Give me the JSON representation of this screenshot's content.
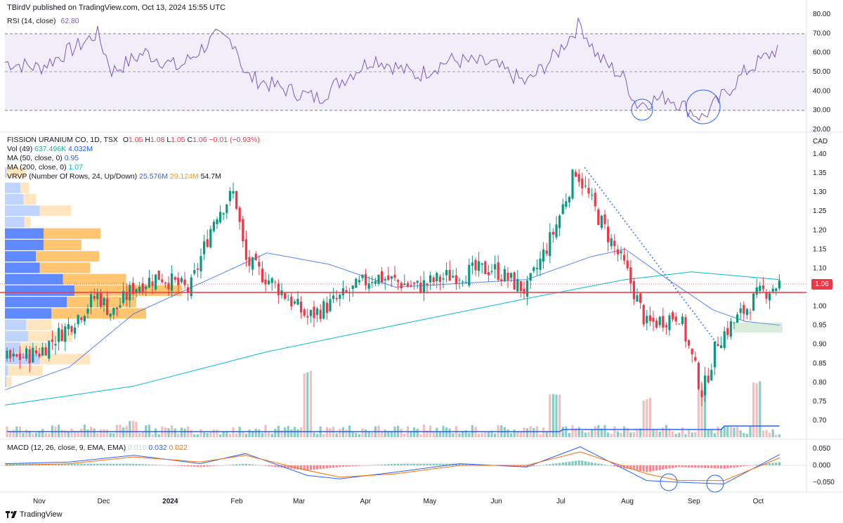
{
  "header": {
    "publisher": "TBirdV published on TradingView.com, Oct 13, 2024 15:55 UTC"
  },
  "rsi_panel": {
    "label": "RSI (14, close)",
    "value": "62.80",
    "levels": [
      "80.00",
      "70.00",
      "60.00",
      "50.00",
      "40.00",
      "30.00",
      "20.00"
    ]
  },
  "main_panel": {
    "symbol": "FISSION URANIUM CO, 1D, TSX",
    "o_label": "O",
    "o": "1.05",
    "h_label": "H",
    "h": "1.08",
    "l_label": "L",
    "l": "1.05",
    "c_label": "C",
    "c": "1.06",
    "change": "−0.01 (−0.93%)",
    "vol_label": "Vol (49)",
    "vol_value": "637.496K",
    "vol_ma": "4.032M",
    "ma50_label": "MA (50, close, 0)",
    "ma50_value": "0.95",
    "ma200_label": "MA (200, close, 0)",
    "ma200_value": "1.07",
    "vrvp_label": "VRVP (Number Of Rows, 24, Up/Down)",
    "vrvp_up": "25.576M",
    "vrvp_down": "29.124M",
    "vrvp_total": "54.7M",
    "currency": "CAD",
    "last_price": "1.06",
    "price_ticks": [
      "1.40",
      "1.35",
      "1.30",
      "1.25",
      "1.20",
      "1.15",
      "1.10",
      "1.05",
      "1.00",
      "0.95",
      "0.90",
      "0.85",
      "0.80",
      "0.75",
      "0.70"
    ]
  },
  "macd_panel": {
    "label": "MACD (12, 26, close, 9, EMA, EMA)",
    "hist": "0.010",
    "macd": "0.032",
    "signal": "0.022",
    "ticks": [
      "0.050",
      "0.000",
      "−0.050"
    ]
  },
  "time_axis": [
    "Nov",
    "Dec",
    "2024",
    "Feb",
    "Mar",
    "Apr",
    "May",
    "Jun",
    "Jul",
    "Aug",
    "Sep",
    "Oct"
  ],
  "brand": "TradingView",
  "colors": {
    "up": "#089981",
    "down": "#f23645",
    "rsi": "#7e57c2",
    "ma50": "#2962ff",
    "ma200": "#00bcd4",
    "support": "#f23645",
    "vp_up": "#2962ff",
    "vp_down": "#ff9800"
  },
  "chart_data": [
    {
      "type": "candlestick",
      "title": "FISSION URANIUM CO, 1D, TSX",
      "x_range": [
        "2023-10-16",
        "2024-10-11"
      ],
      "ylim": [
        0.67,
        1.42
      ],
      "series": [
        {
          "name": "MA (50, close, 0)",
          "points": [
            [
              "2023-10-16",
              0.78
            ],
            [
              "2023-11-15",
              0.84
            ],
            [
              "2023-12-15",
              0.98
            ],
            [
              "2024-01-15",
              1.06
            ],
            [
              "2024-02-15",
              1.14
            ],
            [
              "2024-03-15",
              1.11
            ],
            [
              "2024-04-15",
              1.05
            ],
            [
              "2024-05-15",
              1.06
            ],
            [
              "2024-06-15",
              1.07
            ],
            [
              "2024-07-15",
              1.13
            ],
            [
              "2024-07-31",
              1.15
            ],
            [
              "2024-08-20",
              1.07
            ],
            [
              "2024-09-10",
              0.99
            ],
            [
              "2024-09-25",
              0.96
            ],
            [
              "2024-10-11",
              0.95
            ]
          ]
        },
        {
          "name": "MA (200, close, 0)",
          "points": [
            [
              "2023-10-16",
              0.74
            ],
            [
              "2023-12-15",
              0.79
            ],
            [
              "2024-02-15",
              0.88
            ],
            [
              "2024-04-15",
              0.95
            ],
            [
              "2024-06-15",
              1.02
            ],
            [
              "2024-07-31",
              1.07
            ],
            [
              "2024-08-31",
              1.09
            ],
            [
              "2024-10-11",
              1.07
            ]
          ]
        }
      ],
      "candles": [
        [
          "2023-10-20",
          0.84,
          0.87,
          0.82,
          0.86
        ],
        [
          "2023-11-01",
          0.86,
          0.9,
          0.84,
          0.88
        ],
        [
          "2023-11-15",
          0.88,
          0.97,
          0.87,
          0.95
        ],
        [
          "2023-11-28",
          0.97,
          1.08,
          0.95,
          1.03
        ],
        [
          "2023-12-05",
          1.03,
          1.06,
          0.96,
          0.98
        ],
        [
          "2023-12-15",
          0.99,
          1.07,
          0.98,
          1.05
        ],
        [
          "2023-12-27",
          1.05,
          1.13,
          1.02,
          1.08
        ],
        [
          "2024-01-10",
          1.08,
          1.12,
          1.02,
          1.04
        ],
        [
          "2024-01-22",
          1.12,
          1.27,
          1.1,
          1.24
        ],
        [
          "2024-01-31",
          1.24,
          1.33,
          1.2,
          1.3
        ],
        [
          "2024-02-05",
          1.18,
          1.2,
          1.1,
          1.12
        ],
        [
          "2024-02-20",
          1.1,
          1.12,
          1.03,
          1.05
        ],
        [
          "2024-03-05",
          1.04,
          1.05,
          0.94,
          0.97
        ],
        [
          "2024-03-20",
          0.98,
          1.04,
          0.96,
          1.02
        ],
        [
          "2024-04-05",
          1.04,
          1.16,
          1.02,
          1.08
        ],
        [
          "2024-04-25",
          1.08,
          1.12,
          1.03,
          1.05
        ],
        [
          "2024-05-10",
          1.1,
          1.16,
          1.05,
          1.08
        ],
        [
          "2024-05-30",
          1.12,
          1.16,
          1.08,
          1.1
        ],
        [
          "2024-06-15",
          1.06,
          1.08,
          1.02,
          1.04
        ],
        [
          "2024-06-28",
          1.18,
          1.23,
          1.14,
          1.2
        ],
        [
          "2024-07-08",
          1.3,
          1.38,
          1.28,
          1.36
        ],
        [
          "2024-07-18",
          1.27,
          1.29,
          1.22,
          1.24
        ],
        [
          "2024-07-31",
          1.14,
          1.15,
          1.08,
          1.1
        ],
        [
          "2024-08-10",
          0.98,
          1.0,
          0.93,
          0.95
        ],
        [
          "2024-08-25",
          0.97,
          1.03,
          0.95,
          0.98
        ],
        [
          "2024-09-05",
          0.84,
          0.86,
          0.74,
          0.77
        ],
        [
          "2024-09-12",
          0.86,
          0.95,
          0.83,
          0.91
        ],
        [
          "2024-09-20",
          0.92,
          0.98,
          0.9,
          0.96
        ],
        [
          "2024-10-01",
          1.01,
          1.05,
          0.98,
          1.03
        ],
        [
          "2024-10-11",
          1.05,
          1.08,
          1.05,
          1.06
        ]
      ],
      "annotations": {
        "support_line": 1.04,
        "trendline": [
          [
            "2024-07-10",
            1.37
          ],
          [
            "2024-09-15",
            0.9
          ]
        ],
        "support_zone": [
          0.935,
          0.955
        ],
        "last_price": 1.06
      }
    },
    {
      "type": "line",
      "title": "RSI (14, close)",
      "ylim": [
        20,
        80
      ],
      "levels": [
        70,
        50,
        30
      ],
      "series": [
        {
          "name": "RSI (14, close)",
          "points": [
            [
              "2023-10-16",
              55
            ],
            [
              "2023-11-01",
              52
            ],
            [
              "2023-11-20",
              64
            ],
            [
              "2023-11-28",
              70
            ],
            [
              "2023-12-05",
              50
            ],
            [
              "2023-12-20",
              60
            ],
            [
              "2024-01-05",
              52
            ],
            [
              "2024-01-22",
              68
            ],
            [
              "2024-01-31",
              66
            ],
            [
              "2024-02-05",
              48
            ],
            [
              "2024-02-20",
              42
            ],
            [
              "2024-03-10",
              36
            ],
            [
              "2024-03-20",
              45
            ],
            [
              "2024-04-05",
              57
            ],
            [
              "2024-04-25",
              48
            ],
            [
              "2024-05-10",
              56
            ],
            [
              "2024-05-30",
              54
            ],
            [
              "2024-06-15",
              44
            ],
            [
              "2024-06-28",
              58
            ],
            [
              "2024-07-10",
              75
            ],
            [
              "2024-07-18",
              58
            ],
            [
              "2024-07-31",
              46
            ],
            [
              "2024-08-05",
              33
            ],
            [
              "2024-08-20",
              37
            ],
            [
              "2024-09-05",
              26
            ],
            [
              "2024-09-15",
              38
            ],
            [
              "2024-09-25",
              50
            ],
            [
              "2024-10-05",
              58
            ],
            [
              "2024-10-11",
              62.8
            ]
          ]
        }
      ]
    },
    {
      "type": "bar",
      "title": "Vol (49)",
      "series": [
        {
          "name": "Vol (49)",
          "values_note_free": true,
          "points": [
            [
              "2023-12-15",
              4.0
            ],
            [
              "2024-03-05",
              18.0
            ],
            [
              "2024-06-28",
              12.0
            ],
            [
              "2024-08-10",
              10.0
            ],
            [
              "2024-09-05",
              14.0
            ],
            [
              "2024-09-30",
              15.0
            ],
            [
              "2024-10-11",
              0.64
            ]
          ]
        }
      ]
    },
    {
      "type": "line",
      "title": "MACD (12, 26, close, 9, EMA, EMA)",
      "ylim": [
        -0.075,
        0.065
      ],
      "series": [
        {
          "name": "MACD",
          "points": [
            [
              "2023-10-16",
              0.005
            ],
            [
              "2023-11-15",
              0.01
            ],
            [
              "2023-12-15",
              0.03
            ],
            [
              "2024-01-15",
              0.005
            ],
            [
              "2024-02-05",
              0.035
            ],
            [
              "2024-03-05",
              -0.03
            ],
            [
              "2024-03-20",
              -0.04
            ],
            [
              "2024-04-15",
              -0.02
            ],
            [
              "2024-05-15",
              0.005
            ],
            [
              "2024-06-15",
              -0.005
            ],
            [
              "2024-07-10",
              0.055
            ],
            [
              "2024-08-10",
              -0.045
            ],
            [
              "2024-08-25",
              -0.05
            ],
            [
              "2024-09-15",
              -0.055
            ],
            [
              "2024-10-11",
              0.032
            ]
          ]
        },
        {
          "name": "Signal",
          "points": [
            [
              "2023-10-16",
              0.0
            ],
            [
              "2023-11-15",
              0.005
            ],
            [
              "2023-12-15",
              0.025
            ],
            [
              "2024-01-15",
              0.01
            ],
            [
              "2024-02-05",
              0.03
            ],
            [
              "2024-03-05",
              -0.015
            ],
            [
              "2024-03-20",
              -0.035
            ],
            [
              "2024-04-15",
              -0.025
            ],
            [
              "2024-05-15",
              0.0
            ],
            [
              "2024-06-15",
              0.0
            ],
            [
              "2024-07-10",
              0.04
            ],
            [
              "2024-08-10",
              -0.025
            ],
            [
              "2024-08-25",
              -0.045
            ],
            [
              "2024-09-15",
              -0.045
            ],
            [
              "2024-10-11",
              0.022
            ]
          ]
        }
      ]
    }
  ]
}
